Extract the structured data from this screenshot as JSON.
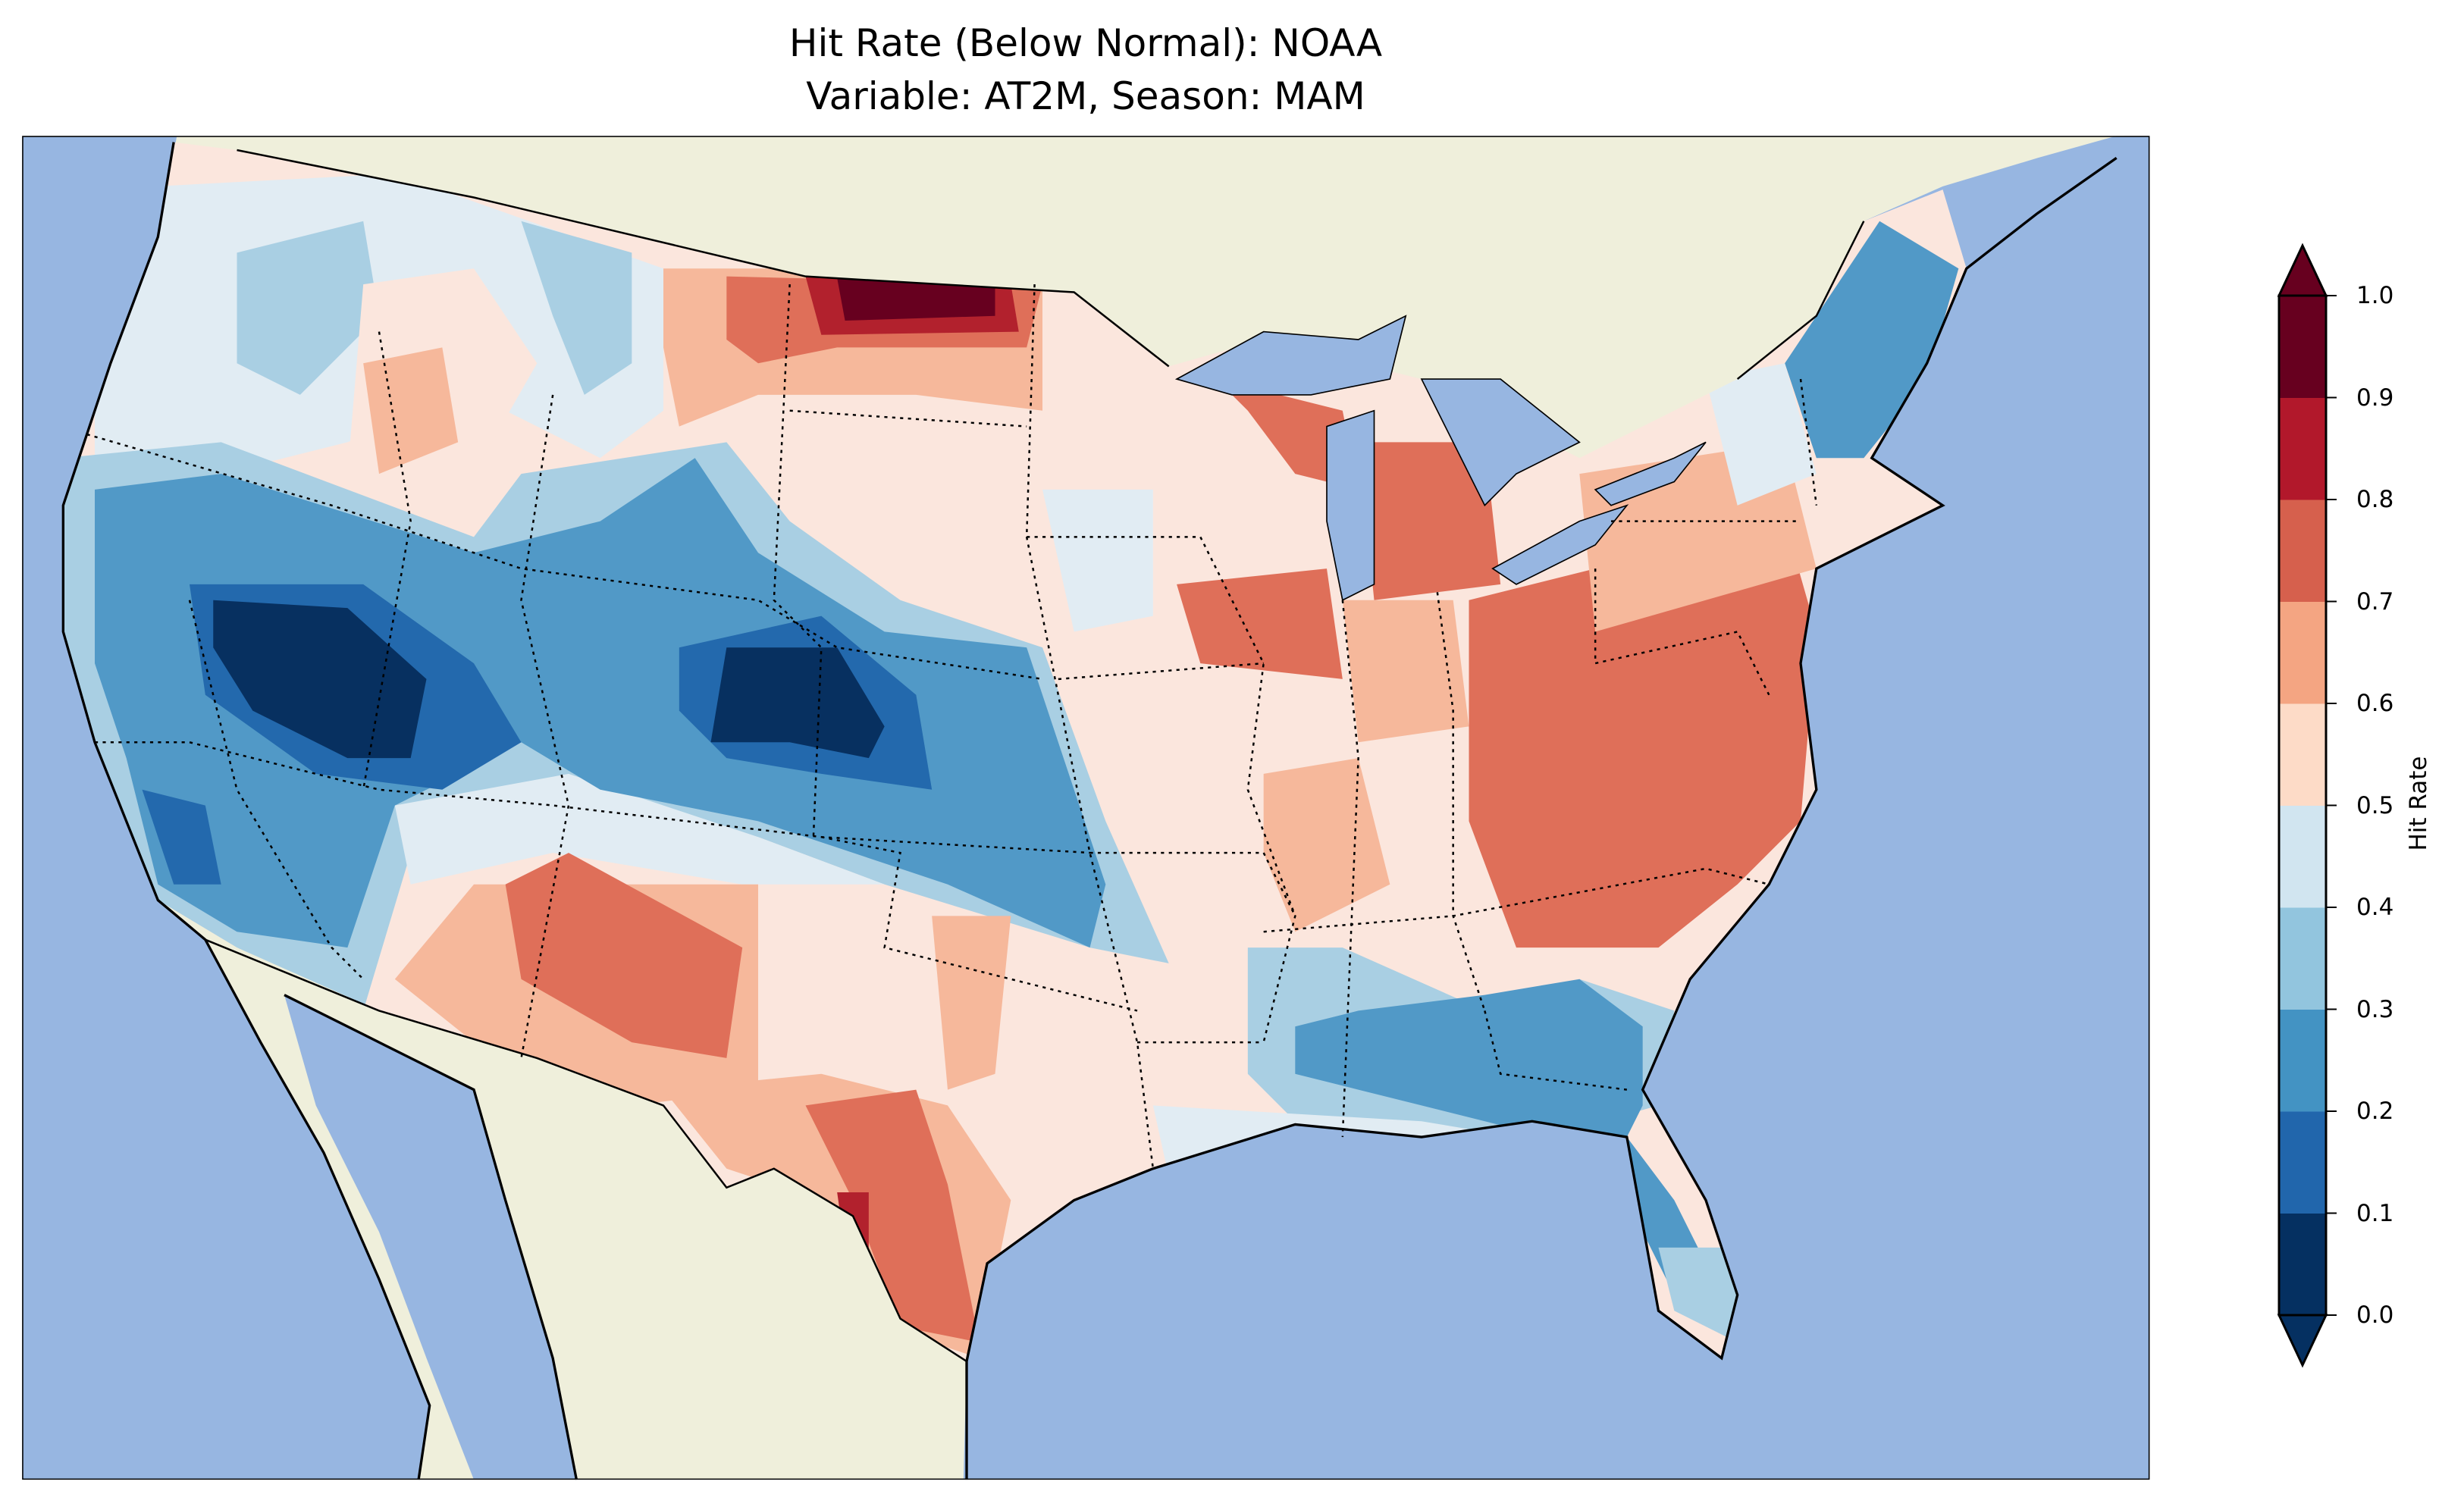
{
  "title": {
    "line1": "Hit Rate (Below Normal): NOAA",
    "line2": "Variable: AT2M, Season: MAM"
  },
  "map": {
    "ocean_color": "#97b6e1",
    "land_color": "#efefdb",
    "region": "Contiguous United States"
  },
  "colorbar": {
    "label": "Hit Rate",
    "ticks": [
      "0.0",
      "0.1",
      "0.2",
      "0.3",
      "0.4",
      "0.5",
      "0.6",
      "0.7",
      "0.8",
      "0.9",
      "1.0"
    ],
    "colors": [
      "#053061",
      "#2166ac",
      "#4393c3",
      "#92c5de",
      "#d1e5f0",
      "#fddbc7",
      "#f4a582",
      "#d6604d",
      "#b2182b",
      "#67001f"
    ],
    "range": [
      0.0,
      1.0
    ],
    "extend": "both"
  }
}
